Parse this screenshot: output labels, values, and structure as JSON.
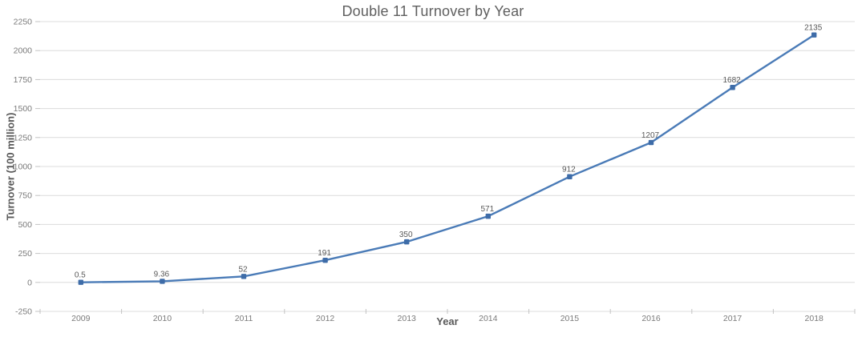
{
  "chart_data": {
    "type": "line",
    "title": "Double 11 Turnover by Year",
    "xlabel": "Year",
    "ylabel": "Turnover (100 million)",
    "categories": [
      "2009",
      "2010",
      "2011",
      "2012",
      "2013",
      "2014",
      "2015",
      "2016",
      "2017",
      "2018"
    ],
    "series": [
      {
        "name": "Turnover",
        "values": [
          0.5,
          9.36,
          52,
          191,
          350,
          571,
          912,
          1207,
          1682,
          2135
        ],
        "data_labels": [
          "0.5",
          "9.36",
          "52",
          "191",
          "350",
          "571",
          "912",
          "1207",
          "1682",
          "2135"
        ]
      }
    ],
    "ylim": [
      -250,
      2250
    ],
    "ytick_step": 250,
    "grid": true,
    "legend": "none",
    "colors": {
      "line": "#4a7bb7",
      "marker": "#3e6ca8",
      "grid": "#dcdcdc",
      "axis_tick": "#c3c3c3",
      "tick_label": "#7a7a7a",
      "data_label": "#595959",
      "title": "#5f5f5f",
      "axis_title": "#595959"
    }
  }
}
